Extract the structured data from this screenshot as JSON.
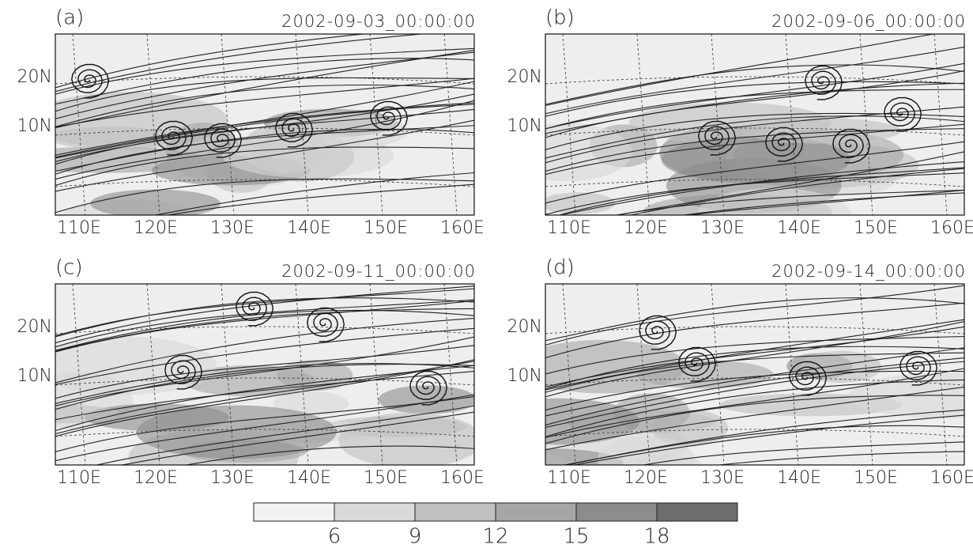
{
  "panels": [
    {
      "label": "(a)",
      "date": "2002-09-03_00:00:00",
      "lat_labels": [
        "20N",
        "10N"
      ],
      "lon_labels": [
        "110E",
        "120E",
        "130E",
        "140E",
        "150E",
        "160E"
      ]
    },
    {
      "label": "(b)",
      "date": "2002-09-06_00:00:00",
      "lat_labels": [
        "20N",
        "10N"
      ],
      "lon_labels": [
        "110E",
        "120E",
        "130E",
        "140E",
        "150E",
        "160E"
      ]
    },
    {
      "label": "(c)",
      "date": "2002-09-11_00:00:00",
      "lat_labels": [
        "20N",
        "10N"
      ],
      "lon_labels": [
        "110E",
        "120E",
        "130E",
        "140E",
        "150E",
        "160E"
      ]
    },
    {
      "label": "(d)",
      "date": "2002-09-14_00:00:00",
      "lat_labels": [
        "20N",
        "10N"
      ],
      "lon_labels": [
        "110E",
        "120E",
        "130E",
        "140E",
        "150E",
        "160E"
      ]
    }
  ],
  "colorbar": {
    "ticks": [
      6,
      9,
      12,
      15,
      18
    ],
    "colors": [
      "#f2f2f2",
      "#d9d9d9",
      "#c0c0c0",
      "#a6a6a6",
      "#8c8c8c",
      "#6e6e6e"
    ]
  }
}
